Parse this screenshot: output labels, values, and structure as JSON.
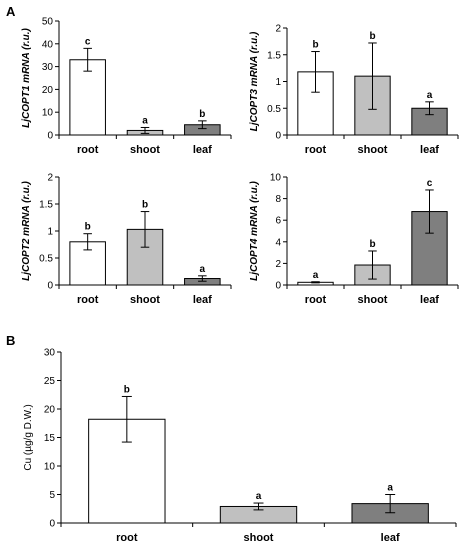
{
  "panel_labels": {
    "a": "A",
    "b": "B"
  },
  "chart_data": [
    {
      "type": "bar",
      "panel": "A",
      "ylabel": "LjCOPT1 mRNA (r.u.)",
      "ylabel_gene": "LjCOPT1",
      "ylabel_rest": " mRNA (r.u.)",
      "categories": [
        "root",
        "shoot",
        "leaf"
      ],
      "values": [
        33,
        2,
        4.5
      ],
      "errors": [
        5,
        1.3,
        1.7
      ],
      "significance": [
        "c",
        "a",
        "b"
      ],
      "colors": [
        "#ffffff",
        "#c0c0c0",
        "#7f7f7f"
      ],
      "ylim": [
        0,
        50
      ],
      "yticks": [
        "0",
        "10",
        "20",
        "30",
        "40",
        "50"
      ],
      "grid": false
    },
    {
      "type": "bar",
      "panel": "A",
      "ylabel": "LjCOPT3 mRNA (r.u.)",
      "ylabel_gene": "LjCOPT3",
      "ylabel_rest": " mRNA (r.u.)",
      "categories": [
        "root",
        "shoot",
        "leaf"
      ],
      "values": [
        1.18,
        1.1,
        0.5
      ],
      "errors": [
        0.38,
        0.62,
        0.12
      ],
      "significance": [
        "b",
        "b",
        "a"
      ],
      "colors": [
        "#ffffff",
        "#c0c0c0",
        "#7f7f7f"
      ],
      "ylim": [
        0,
        2
      ],
      "yticks": [
        "0",
        "0.5",
        "1",
        "1.5",
        "2"
      ],
      "grid": false
    },
    {
      "type": "bar",
      "panel": "A",
      "ylabel": "LjCOPT2 mRNA (r.u.)",
      "ylabel_gene": "LjCOPT2",
      "ylabel_rest": " mRNA (r.u.)",
      "categories": [
        "root",
        "shoot",
        "leaf"
      ],
      "values": [
        0.8,
        1.03,
        0.12
      ],
      "errors": [
        0.15,
        0.33,
        0.05
      ],
      "significance": [
        "b",
        "b",
        "a"
      ],
      "colors": [
        "#ffffff",
        "#c0c0c0",
        "#7f7f7f"
      ],
      "ylim": [
        0,
        2
      ],
      "yticks": [
        "0",
        "0.5",
        "1",
        "1.5",
        "2"
      ],
      "grid": false
    },
    {
      "type": "bar",
      "panel": "A",
      "ylabel": "LjCOPT4 mRNA (r.u.)",
      "ylabel_gene": "LjCOPT4",
      "ylabel_rest": " mRNA (r.u.)",
      "categories": [
        "root",
        "shoot",
        "leaf"
      ],
      "values": [
        0.25,
        1.85,
        6.8
      ],
      "errors": [
        0.05,
        1.3,
        2.0
      ],
      "significance": [
        "a",
        "b",
        "c"
      ],
      "colors": [
        "#ffffff",
        "#c0c0c0",
        "#7f7f7f"
      ],
      "ylim": [
        0,
        10
      ],
      "yticks": [
        "0",
        "2",
        "4",
        "6",
        "8",
        "10"
      ],
      "grid": false
    },
    {
      "type": "bar",
      "panel": "B",
      "ylabel": "Cu (µg/g D.W.)",
      "ylabel_gene": "",
      "ylabel_rest": "Cu (µg/g D.W.)",
      "categories": [
        "root",
        "shoot",
        "leaf"
      ],
      "values": [
        18.2,
        2.9,
        3.4
      ],
      "errors": [
        4.0,
        0.6,
        1.6
      ],
      "significance": [
        "b",
        "a",
        "a"
      ],
      "colors": [
        "#ffffff",
        "#c0c0c0",
        "#7f7f7f"
      ],
      "ylim": [
        0,
        30
      ],
      "yticks": [
        "0",
        "5",
        "10",
        "15",
        "20",
        "25",
        "30"
      ],
      "grid": false
    }
  ]
}
